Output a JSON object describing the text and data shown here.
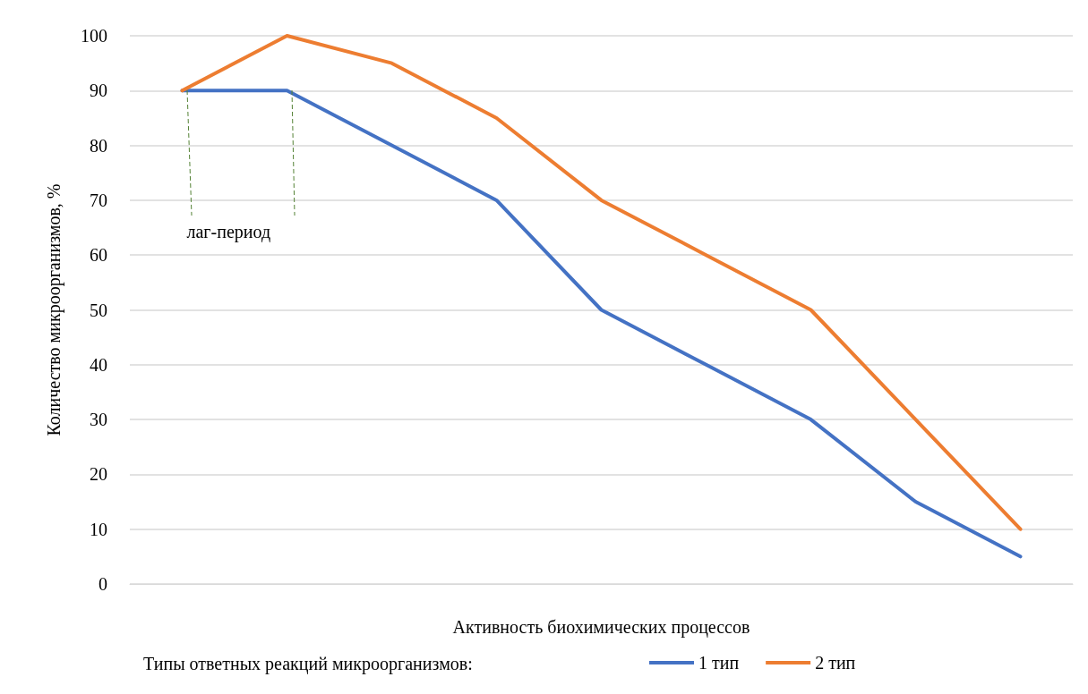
{
  "chart_data": {
    "type": "line",
    "xlabel": "Активность биохимических процессов",
    "ylabel": "Количество микроорганизмов, %",
    "legend_title": "Типы ответных реакций микроорганизмов:",
    "categories": [
      null,
      null,
      null,
      null,
      null,
      null,
      null,
      null,
      null
    ],
    "series": [
      {
        "name": "1 тип",
        "color": "#4472c4",
        "values": [
          90,
          90,
          80,
          70,
          50,
          40,
          30,
          15,
          5
        ]
      },
      {
        "name": "2 тип",
        "color": "#ed7d31",
        "values": [
          90,
          100,
          95,
          85,
          70,
          60,
          50,
          30,
          10
        ]
      }
    ],
    "ylim": [
      0,
      100
    ],
    "yticks": [
      0,
      10,
      20,
      30,
      40,
      50,
      60,
      70,
      80,
      90,
      100
    ],
    "grid": "y",
    "legend": "bottom",
    "marker": "none",
    "line_style": "solid",
    "annotations": [
      "лаг-период"
    ]
  }
}
